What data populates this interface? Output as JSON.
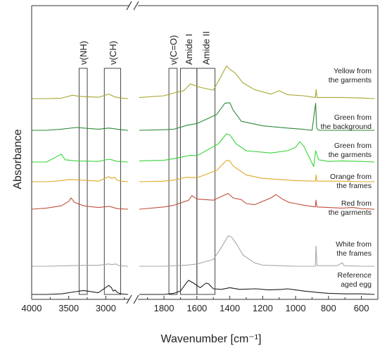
{
  "chart_data": {
    "type": "line",
    "xlabel": "Wavenumber [cm⁻¹]",
    "ylabel": "Absorbance",
    "x_reversed": true,
    "x_break": [
      1950,
      2700
    ],
    "xlim": [
      4000,
      500
    ],
    "x_ticks": [
      4000,
      3500,
      3000,
      1800,
      1600,
      1400,
      1200,
      1000,
      800,
      600
    ],
    "band_regions": [
      {
        "label": "ν(NH)",
        "x": [
          3360,
          3250
        ]
      },
      {
        "label": "ν(CH)",
        "x": [
          3020,
          2800
        ]
      },
      {
        "label": "ν(C=O)",
        "x": [
          1770,
          1720
        ]
      },
      {
        "label": "Amide I",
        "x": [
          1700,
          1600
        ]
      },
      {
        "label": "Amide II",
        "x": [
          1600,
          1490
        ]
      }
    ],
    "series": [
      {
        "name": "Yellow from the garments",
        "lines": [
          "Yellow from",
          "the garments"
        ],
        "color": "#a6a632",
        "points": [
          [
            4000,
            0.0
          ],
          [
            3800,
            0.0
          ],
          [
            3600,
            0.04
          ],
          [
            3450,
            0.3
          ],
          [
            3350,
            0.2
          ],
          [
            3100,
            0.12
          ],
          [
            2960,
            0.4
          ],
          [
            2925,
            0.3
          ],
          [
            2880,
            0.15
          ],
          [
            2800,
            0.05
          ],
          [
            2700,
            0.0
          ],
          [
            1950,
            0.1
          ],
          [
            1800,
            0.25
          ],
          [
            1740,
            0.5
          ],
          [
            1680,
            0.7
          ],
          [
            1640,
            1.3
          ],
          [
            1580,
            1.0
          ],
          [
            1500,
            0.75
          ],
          [
            1460,
            1.8
          ],
          [
            1420,
            2.9
          ],
          [
            1400,
            2.6
          ],
          [
            1370,
            2.3
          ],
          [
            1320,
            1.4
          ],
          [
            1250,
            0.8
          ],
          [
            1150,
            0.4
          ],
          [
            1100,
            0.7
          ],
          [
            1050,
            0.35
          ],
          [
            950,
            0.25
          ],
          [
            880,
            0.1
          ],
          [
            875,
            0.8
          ],
          [
            870,
            0.1
          ],
          [
            800,
            0.1
          ],
          [
            720,
            0.1
          ],
          [
            600,
            0.05
          ],
          [
            520,
            0.0
          ]
        ]
      },
      {
        "name": "Green from the background",
        "lines": [
          "Green from",
          "the background"
        ],
        "color": "#2d8a37",
        "points": [
          [
            4000,
            0.0
          ],
          [
            3800,
            0.0
          ],
          [
            3600,
            0.1
          ],
          [
            3400,
            0.25
          ],
          [
            3300,
            0.2
          ],
          [
            3100,
            0.1
          ],
          [
            2960,
            0.2
          ],
          [
            2900,
            0.15
          ],
          [
            2800,
            0.05
          ],
          [
            2700,
            0.0
          ],
          [
            1950,
            0.0
          ],
          [
            1800,
            0.05
          ],
          [
            1740,
            0.1
          ],
          [
            1660,
            0.45
          ],
          [
            1600,
            0.6
          ],
          [
            1480,
            1.4
          ],
          [
            1430,
            2.4
          ],
          [
            1400,
            2.45
          ],
          [
            1380,
            1.8
          ],
          [
            1330,
            0.8
          ],
          [
            1200,
            0.4
          ],
          [
            1050,
            0.2
          ],
          [
            960,
            0.1
          ],
          [
            900,
            0.0
          ],
          [
            878,
            2.4
          ],
          [
            872,
            0.2
          ],
          [
            860,
            0.0
          ],
          [
            800,
            0.0
          ],
          [
            700,
            0.0
          ],
          [
            520,
            0.0
          ]
        ]
      },
      {
        "name": "Green from the garments",
        "lines": [
          "Green from",
          "the garments"
        ],
        "color": "#39d439",
        "points": [
          [
            4000,
            0.0
          ],
          [
            3800,
            0.0
          ],
          [
            3600,
            0.7
          ],
          [
            3550,
            0.2
          ],
          [
            3400,
            0.1
          ],
          [
            3100,
            0.05
          ],
          [
            2960,
            0.25
          ],
          [
            2920,
            0.2
          ],
          [
            2850,
            0.05
          ],
          [
            2700,
            0.0
          ],
          [
            1950,
            0.1
          ],
          [
            1800,
            0.15
          ],
          [
            1740,
            0.3
          ],
          [
            1640,
            0.6
          ],
          [
            1600,
            0.55
          ],
          [
            1470,
            1.6
          ],
          [
            1420,
            2.5
          ],
          [
            1400,
            2.4
          ],
          [
            1360,
            1.6
          ],
          [
            1300,
            1.0
          ],
          [
            1150,
            0.8
          ],
          [
            1050,
            1.0
          ],
          [
            1000,
            1.3
          ],
          [
            975,
            1.8
          ],
          [
            950,
            1.4
          ],
          [
            910,
            0.2
          ],
          [
            890,
            -0.4
          ],
          [
            878,
            1.0
          ],
          [
            860,
            0.2
          ],
          [
            800,
            0.05
          ],
          [
            720,
            0.1
          ],
          [
            600,
            0.05
          ],
          [
            520,
            0.0
          ]
        ]
      },
      {
        "name": "Orange from the frames",
        "lines": [
          "Orange from",
          "the frames"
        ],
        "color": "#e0a828",
        "points": [
          [
            4000,
            0.0
          ],
          [
            3800,
            0.0
          ],
          [
            3600,
            0.1
          ],
          [
            3500,
            0.2
          ],
          [
            3350,
            0.15
          ],
          [
            3100,
            0.05
          ],
          [
            2960,
            0.45
          ],
          [
            2925,
            0.3
          ],
          [
            2880,
            0.4
          ],
          [
            2850,
            0.15
          ],
          [
            2800,
            0.05
          ],
          [
            2700,
            0.0
          ],
          [
            1950,
            0.0
          ],
          [
            1800,
            0.05
          ],
          [
            1740,
            0.15
          ],
          [
            1660,
            0.4
          ],
          [
            1600,
            0.35
          ],
          [
            1480,
            1.0
          ],
          [
            1420,
            1.9
          ],
          [
            1400,
            1.85
          ],
          [
            1380,
            1.4
          ],
          [
            1300,
            0.6
          ],
          [
            1200,
            0.3
          ],
          [
            1100,
            0.2
          ],
          [
            1000,
            0.1
          ],
          [
            880,
            0.05
          ],
          [
            875,
            0.6
          ],
          [
            870,
            0.05
          ],
          [
            720,
            0.05
          ],
          [
            600,
            0.0
          ],
          [
            520,
            0.0
          ]
        ]
      },
      {
        "name": "Red from the garments",
        "lines": [
          "Red from",
          "the garments"
        ],
        "color": "#c0503c",
        "points": [
          [
            4000,
            0.0
          ],
          [
            3800,
            0.1
          ],
          [
            3600,
            0.3
          ],
          [
            3500,
            0.7
          ],
          [
            3470,
            1.0
          ],
          [
            3420,
            0.6
          ],
          [
            3300,
            0.3
          ],
          [
            3100,
            0.15
          ],
          [
            2960,
            0.25
          ],
          [
            2920,
            0.2
          ],
          [
            2850,
            0.05
          ],
          [
            2700,
            0.0
          ],
          [
            1950,
            0.0
          ],
          [
            1800,
            0.2
          ],
          [
            1740,
            0.35
          ],
          [
            1650,
            0.8
          ],
          [
            1630,
            1.2
          ],
          [
            1600,
            0.9
          ],
          [
            1500,
            0.8
          ],
          [
            1440,
            1.2
          ],
          [
            1410,
            1.4
          ],
          [
            1380,
            1.0
          ],
          [
            1330,
            0.85
          ],
          [
            1300,
            0.5
          ],
          [
            1250,
            0.4
          ],
          [
            1150,
            1.0
          ],
          [
            1120,
            1.3
          ],
          [
            1080,
            0.9
          ],
          [
            1040,
            0.6
          ],
          [
            1000,
            0.5
          ],
          [
            950,
            0.35
          ],
          [
            880,
            0.2
          ],
          [
            876,
            0.8
          ],
          [
            870,
            0.2
          ],
          [
            800,
            0.15
          ],
          [
            720,
            0.1
          ],
          [
            650,
            0.15
          ],
          [
            600,
            0.05
          ],
          [
            520,
            0.0
          ]
        ]
      },
      {
        "name": "White from the frames",
        "lines": [
          "White from",
          "the frames"
        ],
        "color": "#a8a8a8",
        "points": [
          [
            4000,
            0.0
          ],
          [
            3800,
            0.0
          ],
          [
            3500,
            0.05
          ],
          [
            3300,
            0.08
          ],
          [
            3100,
            0.08
          ],
          [
            2960,
            0.2
          ],
          [
            2920,
            0.15
          ],
          [
            2860,
            0.2
          ],
          [
            2820,
            0.05
          ],
          [
            2700,
            0.0
          ],
          [
            1950,
            0.0
          ],
          [
            1800,
            0.0
          ],
          [
            1740,
            0.05
          ],
          [
            1660,
            0.1
          ],
          [
            1600,
            0.2
          ],
          [
            1500,
            0.6
          ],
          [
            1450,
            1.7
          ],
          [
            1410,
            2.7
          ],
          [
            1390,
            2.6
          ],
          [
            1360,
            2.0
          ],
          [
            1320,
            1.0
          ],
          [
            1250,
            0.3
          ],
          [
            1200,
            0.1
          ],
          [
            1100,
            0.05
          ],
          [
            1000,
            0.0
          ],
          [
            880,
            0.0
          ],
          [
            876,
            1.8
          ],
          [
            870,
            0.05
          ],
          [
            750,
            0.05
          ],
          [
            715,
            0.3
          ],
          [
            705,
            0.05
          ],
          [
            600,
            0.0
          ],
          [
            520,
            0.0
          ]
        ]
      },
      {
        "name": "Reference aged egg",
        "lines": [
          "Reference",
          "aged egg"
        ],
        "color": "#1e1e1e",
        "points": [
          [
            4000,
            0.0
          ],
          [
            3800,
            0.0
          ],
          [
            3600,
            0.05
          ],
          [
            3400,
            0.25
          ],
          [
            3300,
            0.35
          ],
          [
            3100,
            0.15
          ],
          [
            2960,
            0.8
          ],
          [
            2925,
            0.6
          ],
          [
            2900,
            0.3
          ],
          [
            2875,
            0.4
          ],
          [
            2850,
            0.2
          ],
          [
            2800,
            0.05
          ],
          [
            2700,
            0.0
          ],
          [
            1950,
            0.0
          ],
          [
            1800,
            0.0
          ],
          [
            1740,
            0.1
          ],
          [
            1700,
            0.3
          ],
          [
            1660,
            1.1
          ],
          [
            1650,
            1.25
          ],
          [
            1620,
            1.0
          ],
          [
            1580,
            0.6
          ],
          [
            1545,
            1.0
          ],
          [
            1530,
            0.95
          ],
          [
            1500,
            0.5
          ],
          [
            1450,
            0.45
          ],
          [
            1400,
            0.6
          ],
          [
            1340,
            0.45
          ],
          [
            1240,
            0.5
          ],
          [
            1160,
            0.4
          ],
          [
            1080,
            0.45
          ],
          [
            1050,
            0.5
          ],
          [
            1000,
            0.4
          ],
          [
            950,
            0.3
          ],
          [
            850,
            0.15
          ],
          [
            800,
            0.1
          ],
          [
            700,
            0.05
          ],
          [
            600,
            0.05
          ],
          [
            520,
            0.0
          ]
        ]
      }
    ]
  }
}
